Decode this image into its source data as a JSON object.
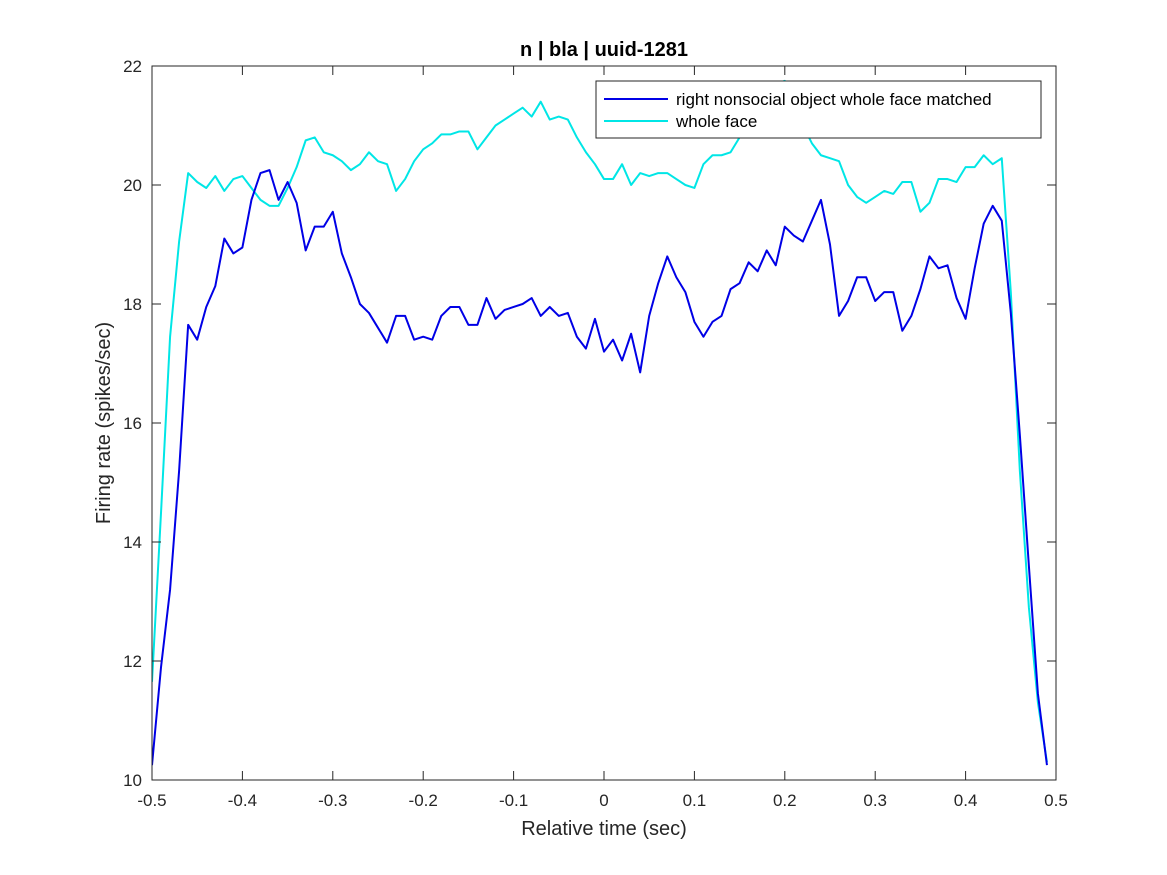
{
  "chart_data": {
    "type": "line",
    "title": "n | bla | uuid-1281",
    "xlabel": "Relative time (sec)",
    "ylabel": "Firing rate (spikes/sec)",
    "xlim": [
      -0.5,
      0.5
    ],
    "ylim": [
      10,
      22
    ],
    "xticks": [
      -0.5,
      -0.4,
      -0.3,
      -0.2,
      -0.1,
      0,
      0.1,
      0.2,
      0.3,
      0.4,
      0.5
    ],
    "xtick_labels": [
      "-0.5",
      "-0.4",
      "-0.3",
      "-0.2",
      "-0.1",
      "0",
      "0.1",
      "0.2",
      "0.3",
      "0.4",
      "0.5"
    ],
    "yticks": [
      10,
      12,
      14,
      16,
      18,
      20,
      22
    ],
    "ytick_labels": [
      "10",
      "12",
      "14",
      "16",
      "18",
      "20",
      "22"
    ],
    "grid": false,
    "legend_position": "top-right",
    "x": [
      -0.5,
      -0.49,
      -0.48,
      -0.47,
      -0.46,
      -0.45,
      -0.44,
      -0.43,
      -0.42,
      -0.41,
      -0.4,
      -0.39,
      -0.38,
      -0.37,
      -0.36,
      -0.35,
      -0.34,
      -0.33,
      -0.32,
      -0.31,
      -0.3,
      -0.29,
      -0.28,
      -0.27,
      -0.26,
      -0.25,
      -0.24,
      -0.23,
      -0.22,
      -0.21,
      -0.2,
      -0.19,
      -0.18,
      -0.17,
      -0.16,
      -0.15,
      -0.14,
      -0.13,
      -0.12,
      -0.11,
      -0.1,
      -0.09,
      -0.08,
      -0.07,
      -0.06,
      -0.05,
      -0.04,
      -0.03,
      -0.02,
      -0.01,
      0,
      0.01,
      0.02,
      0.03,
      0.04,
      0.05,
      0.06,
      0.07,
      0.08,
      0.09,
      0.1,
      0.11,
      0.12,
      0.13,
      0.14,
      0.15,
      0.16,
      0.17,
      0.18,
      0.19,
      0.2,
      0.21,
      0.22,
      0.23,
      0.24,
      0.25,
      0.26,
      0.27,
      0.28,
      0.29,
      0.3,
      0.31,
      0.32,
      0.33,
      0.34,
      0.35,
      0.36,
      0.37,
      0.38,
      0.39,
      0.4,
      0.41,
      0.42,
      0.43,
      0.44,
      0.45,
      0.46,
      0.47,
      0.48,
      0.49
    ],
    "series": [
      {
        "name": "right nonsocial object whole face matched",
        "color": "#0000e6",
        "values": [
          10.25,
          11.9,
          13.2,
          15.2,
          17.65,
          17.4,
          17.95,
          18.3,
          19.1,
          18.85,
          18.95,
          19.75,
          20.2,
          20.25,
          19.75,
          20.05,
          19.7,
          18.9,
          19.3,
          19.3,
          19.55,
          18.85,
          18.45,
          18.0,
          17.85,
          17.6,
          17.35,
          17.8,
          17.8,
          17.4,
          17.45,
          17.4,
          17.8,
          17.95,
          17.95,
          17.65,
          17.65,
          18.1,
          17.75,
          17.9,
          17.95,
          18.0,
          18.1,
          17.8,
          17.95,
          17.8,
          17.85,
          17.45,
          17.25,
          17.75,
          17.2,
          17.4,
          17.05,
          17.5,
          16.85,
          17.8,
          18.35,
          18.8,
          18.45,
          18.2,
          17.7,
          17.45,
          17.7,
          17.8,
          18.25,
          18.35,
          18.7,
          18.55,
          18.9,
          18.65,
          19.3,
          19.15,
          19.05,
          19.4,
          19.75,
          19.0,
          17.8,
          18.05,
          18.45,
          18.45,
          18.05,
          18.2,
          18.2,
          17.55,
          17.8,
          18.25,
          18.8,
          18.6,
          18.65,
          18.1,
          17.75,
          18.6,
          19.35,
          19.65,
          19.4,
          17.85,
          15.8,
          13.6,
          11.45,
          10.25
        ]
      },
      {
        "name": "whole face",
        "color": "#00e6e6",
        "values": [
          11.65,
          14.5,
          17.45,
          19.05,
          20.2,
          20.05,
          19.95,
          20.15,
          19.9,
          20.1,
          20.15,
          19.95,
          19.75,
          19.65,
          19.65,
          19.95,
          20.3,
          20.75,
          20.8,
          20.55,
          20.5,
          20.4,
          20.25,
          20.35,
          20.55,
          20.4,
          20.35,
          19.9,
          20.1,
          20.4,
          20.6,
          20.7,
          20.85,
          20.85,
          20.9,
          20.9,
          20.6,
          20.8,
          21.0,
          21.1,
          21.2,
          21.3,
          21.15,
          21.4,
          21.1,
          21.15,
          21.1,
          20.8,
          20.55,
          20.35,
          20.1,
          20.1,
          20.35,
          20.0,
          20.2,
          20.15,
          20.2,
          20.2,
          20.1,
          20.0,
          19.95,
          20.35,
          20.5,
          20.5,
          20.55,
          20.8,
          21.0,
          21.3,
          21.55,
          21.7,
          21.75,
          21.3,
          21.0,
          20.7,
          20.5,
          20.45,
          20.4,
          20.0,
          19.8,
          19.7,
          19.8,
          19.9,
          19.85,
          20.05,
          20.05,
          19.55,
          19.7,
          20.1,
          20.1,
          20.05,
          20.3,
          20.3,
          20.5,
          20.35,
          20.45,
          18.2,
          15.2,
          12.9,
          11.3,
          10.3
        ]
      }
    ]
  }
}
